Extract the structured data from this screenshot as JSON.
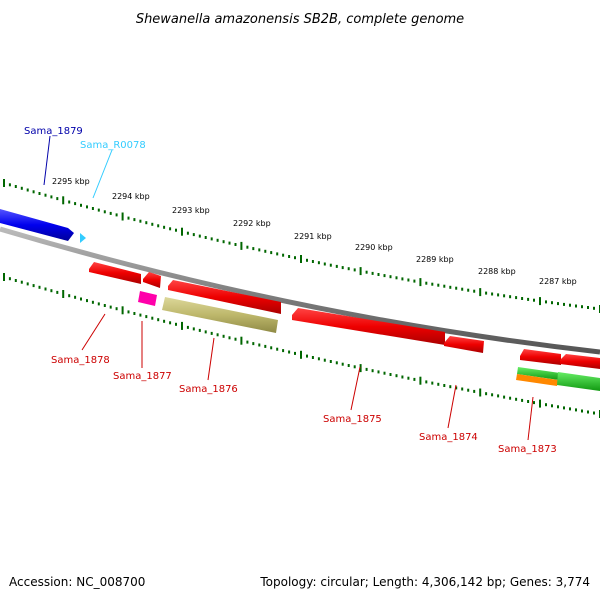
{
  "title": "Shewanella amazonensis SB2B, complete genome",
  "footer": {
    "accession": "Accession: NC_008700",
    "summary": "Topology: circular; Length: 4,306,142 bp; Genes: 3,774"
  },
  "ticks": [
    "2295 kbp",
    "2294 kbp",
    "2293 kbp",
    "2292 kbp",
    "2291 kbp",
    "2290 kbp",
    "2289 kbp",
    "2288 kbp",
    "2287 kbp"
  ],
  "genes": {
    "forward": [
      {
        "label": "Sama_1879",
        "color": "#0000cc"
      },
      {
        "label": "Sama_R0078",
        "color": "#33ccff"
      }
    ],
    "reverse": [
      {
        "label": "Sama_1878",
        "color": "#cc0000"
      },
      {
        "label": "Sama_1877",
        "color": "#cc0000"
      },
      {
        "label": "Sama_1876",
        "color": "#cc0000"
      },
      {
        "label": "Sama_1875",
        "color": "#cc0000"
      },
      {
        "label": "Sama_1874",
        "color": "#cc0000"
      },
      {
        "label": "Sama_1873",
        "color": "#cc0000"
      }
    ]
  },
  "colors": {
    "backbone": "#808080",
    "cds_forward": "#0000ff",
    "rna": "#33ccff",
    "cds_reverse": "#ee0000",
    "pink": "#ff00aa",
    "olive": "#bdb76b",
    "green": "#22cc22",
    "orange": "#ff8800",
    "tick": "#006600"
  }
}
